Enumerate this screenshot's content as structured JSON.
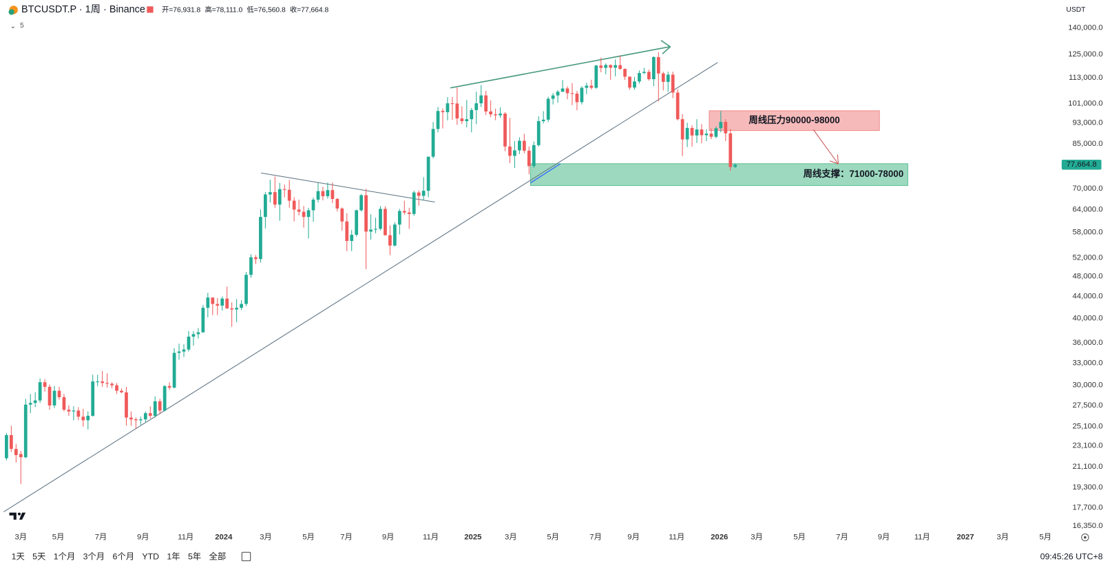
{
  "chart_data": {
    "type": "candlestick",
    "title": "BTCUSDT.P · 1周 · Binance",
    "ohlc_header": [
      "开=76,931.8",
      "高=78,111.0",
      "低=76,560.8",
      "收=77,664.8"
    ],
    "indicator": "5",
    "currency": "USDT",
    "log_scale": true,
    "grid": false,
    "colors": {
      "up": "#22ab94",
      "down": "#f05a5a"
    },
    "xlim": [
      -1.33,
      219.8
    ],
    "ylim": [
      16200,
      158000
    ],
    "xticks": [
      {
        "value": 3,
        "label": "3月"
      },
      {
        "value": 10.8,
        "label": "5月"
      },
      {
        "value": 19.7,
        "label": "7月"
      },
      {
        "value": 28.5,
        "label": "9月"
      },
      {
        "value": 37.4,
        "label": "11月"
      },
      {
        "value": 45.3,
        "label": "2024"
      },
      {
        "value": 54.1,
        "label": "3月"
      },
      {
        "value": 63,
        "label": "5月"
      },
      {
        "value": 70.9,
        "label": "7月"
      },
      {
        "value": 79.6,
        "label": "9月"
      },
      {
        "value": 88.5,
        "label": "11月"
      },
      {
        "value": 97.3,
        "label": "2025"
      },
      {
        "value": 105.2,
        "label": "3月"
      },
      {
        "value": 114,
        "label": "5月"
      },
      {
        "value": 122.9,
        "label": "7月"
      },
      {
        "value": 130.8,
        "label": "9月"
      },
      {
        "value": 139.8,
        "label": "11月"
      },
      {
        "value": 148.7,
        "label": "2026"
      },
      {
        "value": 156.5,
        "label": "3月"
      },
      {
        "value": 165.4,
        "label": "5月"
      },
      {
        "value": 174.3,
        "label": "7月"
      },
      {
        "value": 183,
        "label": "9月"
      },
      {
        "value": 191,
        "label": "11月"
      },
      {
        "value": 200,
        "label": "2027"
      },
      {
        "value": 207.8,
        "label": "3月"
      },
      {
        "value": 216.7,
        "label": "5月"
      }
    ],
    "yticks": [
      {
        "value": 140000,
        "label": "140,000.0"
      },
      {
        "value": 125000,
        "label": "125,000.0"
      },
      {
        "value": 113000,
        "label": "113,000.0"
      },
      {
        "value": 101000,
        "label": "101,000.0"
      },
      {
        "value": 93000,
        "label": "93,000.0"
      },
      {
        "value": 85000,
        "label": "85,000.0"
      },
      {
        "value": 70000,
        "label": "70,000.0"
      },
      {
        "value": 64000,
        "label": "64,000.0"
      },
      {
        "value": 58000,
        "label": "58,000.0"
      },
      {
        "value": 52000,
        "label": "52,000.0"
      },
      {
        "value": 48000,
        "label": "48,000.0"
      },
      {
        "value": 44000,
        "label": "44,000.0"
      },
      {
        "value": 40000,
        "label": "40,000.0"
      },
      {
        "value": 36000,
        "label": "36,000.0"
      },
      {
        "value": 33000,
        "label": "33,000.0"
      },
      {
        "value": 30000,
        "label": "30,000.0"
      },
      {
        "value": 27500,
        "label": "27,500.0"
      },
      {
        "value": 25100,
        "label": "25,100.0"
      },
      {
        "value": 23100,
        "label": "23,100.0"
      },
      {
        "value": 21100,
        "label": "21,100.0"
      },
      {
        "value": 19300,
        "label": "19,300.0"
      },
      {
        "value": 17700,
        "label": "17,700.0"
      },
      {
        "value": 16350,
        "label": "16,350.0"
      }
    ],
    "last_price_label": "77,664.8",
    "zones": [
      {
        "label": "周线压力90000-98000",
        "range": [
          90000,
          98000
        ],
        "color": "#f08c8c"
      },
      {
        "label": "周线支撑：71000-78000",
        "range": [
          71000,
          78000
        ],
        "color": "#5cbf95"
      }
    ],
    "x": [
      0,
      1,
      2,
      3,
      4,
      5,
      6,
      7,
      8,
      9,
      10,
      11,
      12,
      13,
      14,
      15,
      16,
      17,
      18,
      19,
      20,
      21,
      22,
      23,
      24,
      25,
      26,
      27,
      28,
      29,
      30,
      31,
      32,
      33,
      34,
      35,
      36,
      37,
      38,
      39,
      40,
      41,
      42,
      43,
      44,
      45,
      46,
      47,
      48,
      49,
      50,
      51,
      52,
      53,
      54,
      55,
      56,
      57,
      58,
      59,
      60,
      61,
      62,
      63,
      64,
      65,
      66,
      67,
      68,
      69,
      70,
      71,
      72,
      73,
      74,
      75,
      76,
      77,
      78,
      79,
      80,
      81,
      82,
      83,
      84,
      85,
      86,
      87,
      88,
      89,
      90,
      91,
      92,
      93,
      94,
      95,
      96,
      97,
      98,
      99,
      100,
      101,
      102,
      103,
      104,
      105,
      106,
      107,
      108,
      109,
      110,
      111,
      112,
      113,
      114,
      115,
      116,
      117,
      118,
      119,
      120,
      121,
      122,
      123,
      124,
      125,
      126,
      127,
      128,
      129,
      130,
      131,
      132,
      133,
      134,
      135,
      136,
      137,
      138,
      139,
      140,
      141,
      142,
      143,
      144,
      145,
      146,
      147,
      148,
      149,
      150,
      151,
      152
    ],
    "ohlc": [
      [
        21900,
        24400,
        21700,
        24200
      ],
      [
        24200,
        25200,
        22500,
        22800
      ],
      [
        22800,
        23300,
        21500,
        22200
      ],
      [
        22300,
        22600,
        19600,
        22000
      ],
      [
        22000,
        28300,
        21900,
        27600
      ],
      [
        27600,
        28900,
        26600,
        27800
      ],
      [
        27800,
        29100,
        27300,
        28100
      ],
      [
        28100,
        30900,
        27800,
        30400
      ],
      [
        30400,
        30800,
        29200,
        29800
      ],
      [
        29800,
        30100,
        27000,
        27500
      ],
      [
        27500,
        29900,
        27200,
        29300
      ],
      [
        29300,
        29800,
        28200,
        28500
      ],
      [
        28500,
        28900,
        26800,
        27000
      ],
      [
        27000,
        27500,
        26300,
        26800
      ],
      [
        26800,
        27400,
        25800,
        26900
      ],
      [
        26900,
        27300,
        25800,
        26200
      ],
      [
        26200,
        27100,
        25100,
        25800
      ],
      [
        25800,
        26800,
        24800,
        26300
      ],
      [
        26300,
        31400,
        26200,
        30500
      ],
      [
        30500,
        31400,
        29900,
        30500
      ],
      [
        30500,
        31900,
        29800,
        30300
      ],
      [
        30300,
        31600,
        29700,
        30200
      ],
      [
        30200,
        30400,
        29600,
        30000
      ],
      [
        30000,
        30300,
        28900,
        29300
      ],
      [
        29300,
        29600,
        29000,
        29100
      ],
      [
        29100,
        29800,
        25200,
        26100
      ],
      [
        26100,
        26800,
        25200,
        25900
      ],
      [
        25900,
        26100,
        24900,
        25800
      ],
      [
        25800,
        26200,
        25300,
        25900
      ],
      [
        25900,
        26800,
        25600,
        26600
      ],
      [
        26600,
        27400,
        26000,
        26300
      ],
      [
        26300,
        28600,
        26100,
        28000
      ],
      [
        28000,
        28300,
        26500,
        26900
      ],
      [
        26900,
        30000,
        26800,
        29900
      ],
      [
        29900,
        30400,
        29400,
        29700
      ],
      [
        29700,
        35200,
        29600,
        34500
      ],
      [
        34500,
        35900,
        33500,
        34700
      ],
      [
        34700,
        35800,
        33900,
        35000
      ],
      [
        35000,
        37900,
        34700,
        37000
      ],
      [
        37000,
        37900,
        35600,
        37400
      ],
      [
        37400,
        38400,
        36700,
        37700
      ],
      [
        37700,
        42400,
        37600,
        41900
      ],
      [
        41900,
        44700,
        40200,
        43800
      ],
      [
        43800,
        43800,
        40600,
        42600
      ],
      [
        42600,
        43700,
        40600,
        42300
      ],
      [
        42300,
        44000,
        41400,
        43600
      ],
      [
        43600,
        45900,
        41700,
        41800
      ],
      [
        41800,
        42900,
        38600,
        41600
      ],
      [
        41600,
        43500,
        39400,
        41900
      ],
      [
        41900,
        43300,
        41500,
        42600
      ],
      [
        42600,
        48900,
        42200,
        48300
      ],
      [
        48300,
        52800,
        47700,
        52100
      ],
      [
        52100,
        52600,
        50600,
        51700
      ],
      [
        51700,
        64000,
        50900,
        62000
      ],
      [
        62000,
        69000,
        59000,
        68300
      ],
      [
        68300,
        72800,
        66000,
        69000
      ],
      [
        69000,
        73800,
        64500,
        65400
      ],
      [
        65400,
        71800,
        61000,
        69900
      ],
      [
        69900,
        71300,
        67500,
        69700
      ],
      [
        69700,
        72700,
        64500,
        66500
      ],
      [
        66500,
        67500,
        60800,
        64000
      ],
      [
        64000,
        66800,
        62400,
        63400
      ],
      [
        63400,
        65000,
        59200,
        62000
      ],
      [
        62000,
        64500,
        56500,
        63800
      ],
      [
        63800,
        67400,
        60700,
        66800
      ],
      [
        66800,
        71900,
        66000,
        69300
      ],
      [
        69300,
        70600,
        66600,
        67800
      ],
      [
        67800,
        71900,
        67100,
        69600
      ],
      [
        69600,
        71900,
        65800,
        67000
      ],
      [
        67000,
        67300,
        63500,
        64300
      ],
      [
        64300,
        64600,
        58400,
        60800
      ],
      [
        60800,
        63000,
        53500,
        55900
      ],
      [
        55900,
        58600,
        53500,
        57400
      ],
      [
        57400,
        64000,
        57000,
        63800
      ],
      [
        63800,
        68400,
        63500,
        68100
      ],
      [
        68100,
        70000,
        49500,
        58200
      ],
      [
        58200,
        62700,
        56200,
        58700
      ],
      [
        58700,
        61800,
        57800,
        58900
      ],
      [
        58900,
        65000,
        58500,
        64200
      ],
      [
        64200,
        64900,
        57200,
        57300
      ],
      [
        57300,
        59800,
        52600,
        54800
      ],
      [
        54800,
        60600,
        54600,
        60000
      ],
      [
        60000,
        64200,
        57500,
        63600
      ],
      [
        63600,
        66500,
        62600,
        63200
      ],
      [
        63200,
        64500,
        58900,
        62800
      ],
      [
        62800,
        69400,
        62300,
        68900
      ],
      [
        68900,
        69500,
        65100,
        67900
      ],
      [
        67900,
        73600,
        66600,
        69400
      ],
      [
        69400,
        80400,
        67500,
        80400
      ],
      [
        80400,
        93400,
        79800,
        90600
      ],
      [
        90600,
        99600,
        89300,
        97900
      ],
      [
        97900,
        99000,
        90800,
        97400
      ],
      [
        97400,
        103900,
        94000,
        101200
      ],
      [
        101200,
        104000,
        94200,
        101100
      ],
      [
        101100,
        108300,
        92200,
        94800
      ],
      [
        94800,
        99900,
        92500,
        93700
      ],
      [
        93700,
        102700,
        91200,
        94500
      ],
      [
        94500,
        99200,
        89300,
        98300
      ],
      [
        98300,
        106400,
        92500,
        101200
      ],
      [
        101200,
        109500,
        99600,
        104700
      ],
      [
        104700,
        106800,
        96200,
        97700
      ],
      [
        97700,
        102500,
        95300,
        96500
      ],
      [
        96500,
        98900,
        94100,
        96100
      ],
      [
        96100,
        99500,
        95100,
        96800
      ],
      [
        96800,
        97400,
        82300,
        84000
      ],
      [
        84000,
        95000,
        78200,
        80700
      ],
      [
        80700,
        86000,
        76600,
        82600
      ],
      [
        82600,
        87400,
        81300,
        86100
      ],
      [
        86100,
        88700,
        81600,
        82500
      ],
      [
        82500,
        84000,
        74500,
        77200
      ],
      [
        77200,
        85800,
        76600,
        84500
      ],
      [
        84500,
        95700,
        84000,
        93700
      ],
      [
        93700,
        97800,
        92800,
        94300
      ],
      [
        94300,
        104100,
        93300,
        103200
      ],
      [
        103200,
        105800,
        100700,
        104700
      ],
      [
        104700,
        107100,
        101500,
        106400
      ],
      [
        106400,
        111900,
        106200,
        107900
      ],
      [
        107900,
        108900,
        103000,
        105700
      ],
      [
        105700,
        110400,
        100400,
        105500
      ],
      [
        105500,
        106800,
        98200,
        101700
      ],
      [
        101700,
        108900,
        100700,
        108200
      ],
      [
        108200,
        110600,
        105300,
        109200
      ],
      [
        109200,
        112000,
        107400,
        108200
      ],
      [
        108200,
        119400,
        107800,
        119100
      ],
      [
        119100,
        123200,
        115700,
        117900
      ],
      [
        117900,
        120200,
        114700,
        119400
      ],
      [
        119400,
        119600,
        112000,
        118000
      ],
      [
        118000,
        122300,
        113700,
        119300
      ],
      [
        119300,
        124400,
        116900,
        117400
      ],
      [
        117400,
        117600,
        111900,
        113500
      ],
      [
        113500,
        113600,
        107300,
        108300
      ],
      [
        108300,
        113400,
        107300,
        111200
      ],
      [
        111200,
        116600,
        110200,
        115300
      ],
      [
        115300,
        117900,
        114800,
        115900
      ],
      [
        115900,
        117000,
        111600,
        112300
      ],
      [
        112300,
        124000,
        109000,
        123500
      ],
      [
        123500,
        126200,
        102000,
        115100
      ],
      [
        115100,
        116000,
        107000,
        111000
      ],
      [
        111000,
        116000,
        106300,
        114500
      ],
      [
        114500,
        116000,
        103500,
        106000
      ],
      [
        106000,
        107500,
        94000,
        94500
      ],
      [
        94500,
        96600,
        80600,
        86600
      ],
      [
        86600,
        93100,
        83800,
        91000
      ],
      [
        91000,
        92000,
        84000,
        88100
      ],
      [
        88100,
        94500,
        85300,
        90400
      ],
      [
        90400,
        92500,
        85200,
        88200
      ],
      [
        88200,
        90500,
        86000,
        88800
      ],
      [
        88800,
        90800,
        86700,
        87600
      ],
      [
        87600,
        91600,
        87000,
        90900
      ],
      [
        90900,
        97900,
        89300,
        93400
      ],
      [
        93400,
        94500,
        86000,
        88900
      ],
      [
        88900,
        90600,
        75700,
        76900
      ],
      [
        76931.8,
        78111.0,
        76560.8,
        77664.8
      ]
    ]
  },
  "toolbar": {
    "ranges": [
      "1天",
      "5天",
      "1个月",
      "3个月",
      "6个月",
      "YTD",
      "1年",
      "5年",
      "全部"
    ],
    "clock": "09:45:26 UTC+8"
  }
}
